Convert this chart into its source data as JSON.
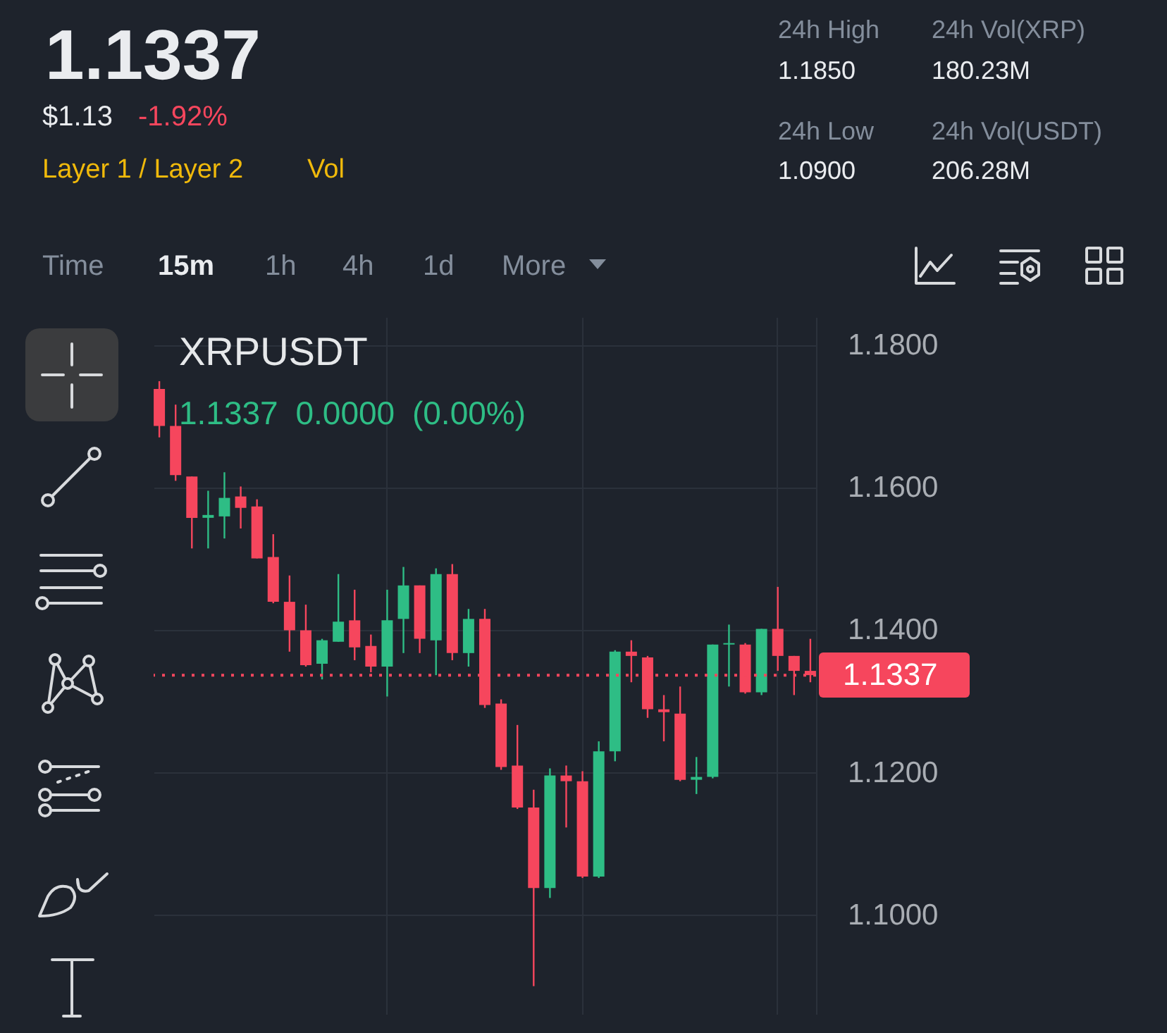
{
  "chart_data": {
    "type": "candlestick",
    "title": "XRPUSDT",
    "subtitle": "1.1337 0.0000 (0.00%)",
    "annotations": [
      "1.1337",
      "$1.13",
      "-1.92%",
      "Layer 1 / Layer 2",
      "Vol",
      "24h High",
      "1.1850",
      "24h Vol(XRP)",
      "180.23M",
      "24h Low",
      "1.0900",
      "24h Vol(USDT)",
      "206.28M",
      "Time",
      "15m",
      "1h",
      "4h",
      "1d",
      "More"
    ],
    "categories": [
      null,
      null,
      null,
      null,
      null,
      null,
      null,
      null,
      null,
      null,
      null,
      null,
      null,
      null,
      null,
      null,
      null,
      null,
      null,
      null,
      null,
      null,
      null,
      null,
      null,
      null,
      null,
      null,
      null,
      null,
      null,
      null,
      null,
      null,
      null,
      null,
      null,
      null,
      null,
      null,
      null
    ],
    "ohlc": [
      [
        1.1739,
        1.175,
        1.1671,
        1.1687
      ],
      [
        1.1687,
        1.1717,
        1.161,
        1.1618
      ],
      [
        1.1616,
        1.1616,
        1.1515,
        1.1558
      ],
      [
        1.1558,
        1.1596,
        1.1515,
        1.1562
      ],
      [
        1.156,
        1.1622,
        1.1529,
        1.1586
      ],
      [
        1.1588,
        1.1602,
        1.1543,
        1.1572
      ],
      [
        1.1574,
        1.1584,
        1.1501,
        1.1501
      ],
      [
        1.1503,
        1.1535,
        1.1438,
        1.144
      ],
      [
        1.144,
        1.1477,
        1.137,
        1.14
      ],
      [
        1.14,
        1.1436,
        1.1349,
        1.1351
      ],
      [
        1.1353,
        1.1388,
        1.1331,
        1.1386
      ],
      [
        1.1384,
        1.1479,
        1.1384,
        1.1412
      ],
      [
        1.1414,
        1.1457,
        1.1358,
        1.1376
      ],
      [
        1.1378,
        1.1394,
        1.1341,
        1.1349
      ],
      [
        1.1349,
        1.1457,
        1.1307,
        1.1414
      ],
      [
        1.1416,
        1.1489,
        1.1368,
        1.1463
      ],
      [
        1.1463,
        1.1463,
        1.1368,
        1.1388
      ],
      [
        1.1386,
        1.1487,
        1.1337,
        1.1479
      ],
      [
        1.1479,
        1.1493,
        1.1358,
        1.1368
      ],
      [
        1.1368,
        1.143,
        1.1349,
        1.1416
      ],
      [
        1.1416,
        1.143,
        1.1291,
        1.1295
      ],
      [
        1.1297,
        1.1303,
        1.1204,
        1.1208
      ],
      [
        1.121,
        1.1267,
        1.1149,
        1.1151
      ],
      [
        1.1151,
        1.1176,
        1.09,
        1.1038
      ],
      [
        1.1038,
        1.1206,
        1.1024,
        1.1196
      ],
      [
        1.1196,
        1.121,
        1.1123,
        1.1188
      ],
      [
        1.1188,
        1.1202,
        1.1052,
        1.1054
      ],
      [
        1.1054,
        1.1244,
        1.1052,
        1.123
      ],
      [
        1.123,
        1.1372,
        1.1216,
        1.137
      ],
      [
        1.137,
        1.1386,
        1.1327,
        1.1364
      ],
      [
        1.1362,
        1.1364,
        1.1277,
        1.1289
      ],
      [
        1.1289,
        1.1309,
        1.1244,
        1.1285
      ],
      [
        1.1283,
        1.1321,
        1.1188,
        1.119
      ],
      [
        1.119,
        1.1222,
        1.117,
        1.1194
      ],
      [
        1.1194,
        1.138,
        1.1192,
        1.138
      ],
      [
        1.138,
        1.1408,
        1.1321,
        1.1382
      ],
      [
        1.138,
        1.1382,
        1.1311,
        1.1313
      ],
      [
        1.1313,
        1.1402,
        1.1309,
        1.1402
      ],
      [
        1.1402,
        1.1461,
        1.1343,
        1.1364
      ],
      [
        1.1364,
        1.1364,
        1.1309,
        1.1343
      ],
      [
        1.1343,
        1.1388,
        1.1327,
        1.1337
      ]
    ],
    "colors": [
      "#f6465d",
      "#f6465d",
      "#f6465d",
      "#2ebd85",
      "#2ebd85",
      "#f6465d",
      "#f6465d",
      "#f6465d",
      "#f6465d",
      "#f6465d",
      "#2ebd85",
      "#2ebd85",
      "#f6465d",
      "#f6465d",
      "#2ebd85",
      "#2ebd85",
      "#f6465d",
      "#2ebd85",
      "#f6465d",
      "#2ebd85",
      "#f6465d",
      "#f6465d",
      "#f6465d",
      "#f6465d",
      "#2ebd85",
      "#f6465d",
      "#f6465d",
      "#2ebd85",
      "#2ebd85",
      "#f6465d",
      "#f6465d",
      "#f6465d",
      "#f6465d",
      "#2ebd85",
      "#2ebd85",
      "#2ebd85",
      "#f6465d",
      "#2ebd85",
      "#f6465d",
      "#f6465d",
      "#f6465d"
    ],
    "ylim": [
      1.086,
      1.184
    ],
    "yticks": [
      {
        "value": 1.1,
        "label": "1.1000"
      },
      {
        "value": 1.12,
        "label": "1.1200"
      },
      {
        "value": 1.14,
        "label": "1.1400"
      },
      {
        "value": 1.16,
        "label": "1.1600"
      },
      {
        "value": 1.18,
        "label": "1.1800"
      }
    ],
    "grid": true,
    "ref_lines": [
      {
        "axis": "y",
        "value": 1.1337,
        "label": "1.1337",
        "color": "#f6465d",
        "line_style": "dotted"
      }
    ]
  }
}
